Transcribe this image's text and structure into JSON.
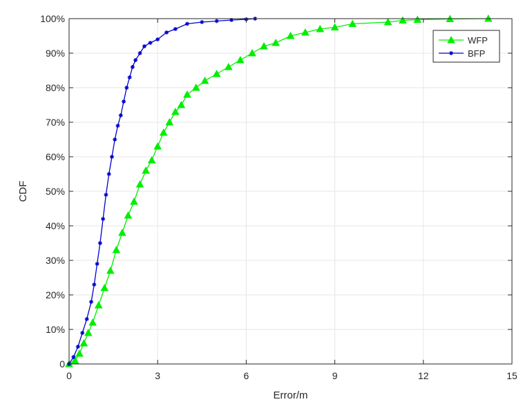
{
  "chart_data": {
    "type": "line",
    "title": "",
    "xlabel": "Error/m",
    "ylabel": "CDF",
    "xlim": [
      0,
      15
    ],
    "ylim": [
      0,
      1
    ],
    "x_ticks": [
      0,
      3,
      6,
      9,
      12,
      15
    ],
    "x_tick_labels": [
      "0",
      "3",
      "6",
      "9",
      "12",
      "15"
    ],
    "y_ticks": [
      0,
      0.1,
      0.2,
      0.3,
      0.4,
      0.5,
      0.6,
      0.7,
      0.8,
      0.9,
      1.0
    ],
    "y_tick_labels": [
      "0",
      "10%",
      "20%",
      "30%",
      "40%",
      "50%",
      "60%",
      "70%",
      "80%",
      "90%",
      "100%"
    ],
    "grid": true,
    "legend_position": "top-right",
    "series": [
      {
        "name": "WFP",
        "color": "#00ee00",
        "marker": "triangle",
        "x": [
          0,
          0.2,
          0.35,
          0.5,
          0.65,
          0.8,
          1.0,
          1.2,
          1.4,
          1.6,
          1.8,
          2.0,
          2.2,
          2.4,
          2.6,
          2.8,
          3.0,
          3.2,
          3.4,
          3.6,
          3.8,
          4.0,
          4.3,
          4.6,
          5.0,
          5.4,
          5.8,
          6.2,
          6.6,
          7.0,
          7.5,
          8.0,
          8.5,
          9.0,
          9.6,
          10.8,
          11.3,
          11.8,
          12.9,
          14.2
        ],
        "y": [
          0,
          0.01,
          0.03,
          0.06,
          0.09,
          0.12,
          0.17,
          0.22,
          0.27,
          0.33,
          0.38,
          0.43,
          0.47,
          0.52,
          0.56,
          0.59,
          0.63,
          0.67,
          0.7,
          0.73,
          0.75,
          0.78,
          0.8,
          0.82,
          0.84,
          0.86,
          0.88,
          0.9,
          0.92,
          0.93,
          0.95,
          0.96,
          0.97,
          0.975,
          0.985,
          0.99,
          0.995,
          0.997,
          0.999,
          1.0
        ]
      },
      {
        "name": "BFP",
        "color": "#0000cc",
        "marker": "star",
        "x": [
          0,
          0.15,
          0.3,
          0.45,
          0.6,
          0.75,
          0.85,
          0.95,
          1.05,
          1.15,
          1.25,
          1.35,
          1.45,
          1.55,
          1.65,
          1.75,
          1.85,
          1.95,
          2.05,
          2.15,
          2.25,
          2.4,
          2.55,
          2.75,
          3.0,
          3.3,
          3.6,
          4.0,
          4.5,
          5.0,
          5.5,
          6.0,
          6.3
        ],
        "y": [
          0,
          0.02,
          0.05,
          0.09,
          0.13,
          0.18,
          0.23,
          0.29,
          0.35,
          0.42,
          0.49,
          0.55,
          0.6,
          0.65,
          0.69,
          0.72,
          0.76,
          0.8,
          0.83,
          0.86,
          0.88,
          0.9,
          0.92,
          0.93,
          0.94,
          0.96,
          0.97,
          0.985,
          0.99,
          0.993,
          0.996,
          0.998,
          1.0
        ]
      }
    ]
  }
}
